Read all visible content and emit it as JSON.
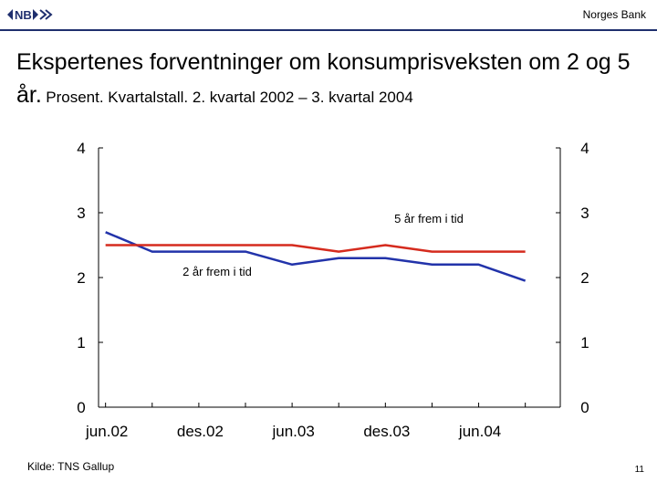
{
  "header": {
    "brand": "Norges Bank",
    "logo_icon": "norges-bank-logo-icon",
    "accent_color": "#1f2f6e"
  },
  "title": {
    "main": "Ekspertenes forventninger om konsumprisveksten om 2 og 5 år.",
    "sub": "Prosent. Kvartalstall. 2. kvartal 2002 – 3. kvartal 2004"
  },
  "chart_data": {
    "type": "line",
    "x": [
      "2002Q2",
      "2002Q3",
      "2002Q4",
      "2003Q1",
      "2003Q2",
      "2003Q3",
      "2003Q4",
      "2004Q1",
      "2004Q2",
      "2004Q3"
    ],
    "xticks": [
      "jun.02",
      "des.02",
      "jun.03",
      "des.03",
      "jun.04"
    ],
    "ylim": [
      0,
      4
    ],
    "yticks": [
      "0",
      "1",
      "2",
      "3",
      "4"
    ],
    "grid": false,
    "series": [
      {
        "name": "2 år frem i tid",
        "color": "#2233aa",
        "values": [
          2.7,
          2.4,
          2.4,
          2.4,
          2.2,
          2.3,
          2.3,
          2.2,
          2.2,
          1.95
        ]
      },
      {
        "name": "5 år frem i tid",
        "color": "#d52b1e",
        "values": [
          2.5,
          2.5,
          2.5,
          2.5,
          2.5,
          2.4,
          2.5,
          2.4,
          2.4,
          2.4
        ]
      }
    ]
  },
  "footer": {
    "source": "Kilde: TNS Gallup",
    "page": "11"
  }
}
